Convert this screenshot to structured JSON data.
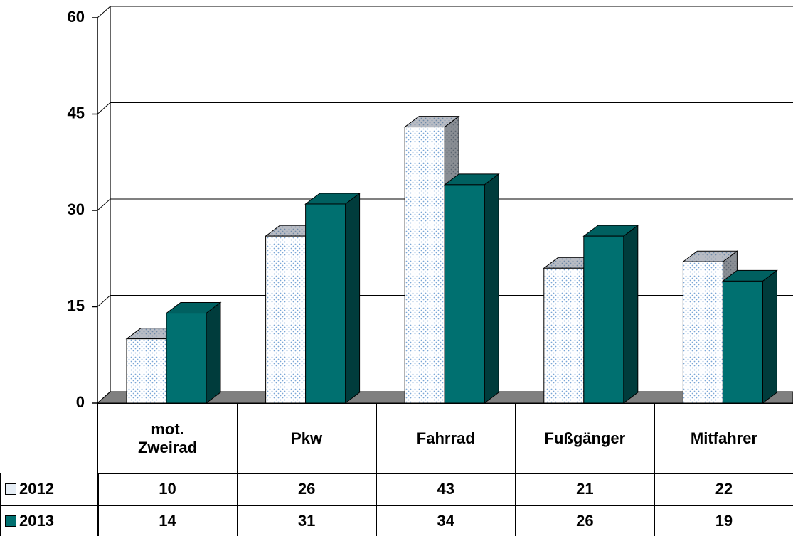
{
  "chart_data": {
    "type": "bar3d",
    "categories": [
      "mot. Zweirad",
      "Pkw",
      "Fahrrad",
      "Fußgänger",
      "Mitfahrer"
    ],
    "series": [
      {
        "name": "2012",
        "color": "#dfe8f2",
        "values": [
          10,
          26,
          43,
          21,
          22
        ]
      },
      {
        "name": "2013",
        "color": "#007070",
        "values": [
          14,
          31,
          34,
          26,
          19
        ]
      }
    ],
    "ylim": [
      0,
      60
    ],
    "yticks": [
      0,
      15,
      30,
      45,
      60
    ],
    "grid": true
  }
}
